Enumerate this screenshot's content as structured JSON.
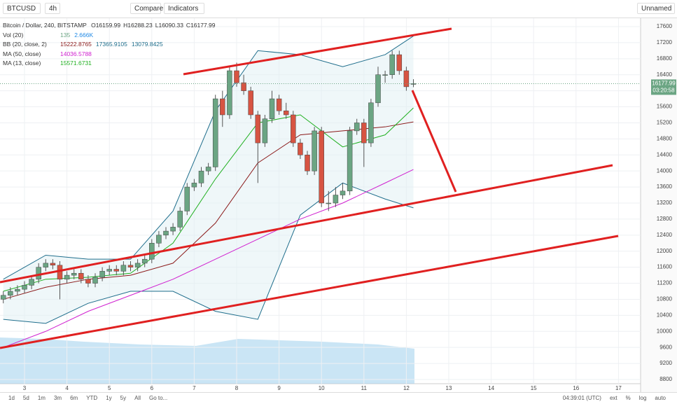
{
  "toolbar": {
    "symbol": "BTCUSD",
    "interval": "4h",
    "compare": "Compare",
    "indicators": "Indicators",
    "layout": "Unnamed"
  },
  "legend": {
    "title": "Bitcoin / Dollar, 240, BITSTAMP",
    "ohlc": [
      {
        "key": "O",
        "value": "16159.99"
      },
      {
        "key": "H",
        "value": "16288.23"
      },
      {
        "key": "L",
        "value": "16090.33"
      },
      {
        "key": "C",
        "value": "16177.99"
      }
    ],
    "studies": [
      {
        "name": "Vol (20)",
        "values": [
          "135",
          "2.666K"
        ],
        "colors": [
          "#6ba583",
          "#1e88e5"
        ]
      },
      {
        "name": "BB (20, close, 2)",
        "values": [
          "15222.8765",
          "17365.9105",
          "13079.8425"
        ],
        "colors": [
          "#8b1a1a",
          "#1f6e8c",
          "#1f6e8c"
        ]
      },
      {
        "name": "MA (50, close)",
        "values": [
          "14036.5788"
        ],
        "colors": [
          "#d020d0"
        ]
      },
      {
        "name": "MA (13, close)",
        "values": [
          "15571.6731"
        ],
        "colors": [
          "#20b020"
        ]
      }
    ]
  },
  "chart_data": {
    "type": "candlestick",
    "ylim": [
      8800,
      17600
    ],
    "yticks": [
      8800,
      9200,
      9600,
      10000,
      10400,
      10800,
      11200,
      11600,
      12000,
      12400,
      12800,
      13200,
      13600,
      14000,
      14400,
      14800,
      15200,
      15600,
      16000,
      16400,
      16800,
      17200,
      17600
    ],
    "xticks": [
      3,
      4,
      5,
      6,
      7,
      8,
      9,
      10,
      11,
      12,
      13,
      14,
      15,
      16,
      17
    ],
    "up_color": "#6ba583",
    "down_color": "#d75442",
    "candles": [
      [
        10800,
        11000,
        10700,
        10900
      ],
      [
        10900,
        11100,
        10800,
        11000
      ],
      [
        11000,
        11150,
        10900,
        11050
      ],
      [
        11050,
        11250,
        10950,
        11150
      ],
      [
        11150,
        11400,
        11050,
        11300
      ],
      [
        11300,
        11700,
        11200,
        11600
      ],
      [
        11600,
        11800,
        11500,
        11700
      ],
      [
        11700,
        11800,
        11550,
        11650
      ],
      [
        11650,
        11750,
        10800,
        11300
      ],
      [
        11300,
        11500,
        11200,
        11400
      ],
      [
        11400,
        11550,
        11300,
        11450
      ],
      [
        11450,
        11550,
        11200,
        11300
      ],
      [
        11300,
        11400,
        11100,
        11200
      ],
      [
        11200,
        11450,
        11100,
        11350
      ],
      [
        11350,
        11600,
        11250,
        11500
      ],
      [
        11500,
        11650,
        11400,
        11550
      ],
      [
        11550,
        11650,
        11400,
        11500
      ],
      [
        11500,
        11750,
        11400,
        11650
      ],
      [
        11650,
        11750,
        11500,
        11600
      ],
      [
        11600,
        11800,
        11500,
        11700
      ],
      [
        11700,
        11900,
        11600,
        11800
      ],
      [
        11800,
        12300,
        11700,
        12200
      ],
      [
        12200,
        12500,
        12100,
        12400
      ],
      [
        12400,
        12600,
        12300,
        12500
      ],
      [
        12500,
        12700,
        12400,
        12600
      ],
      [
        12600,
        13100,
        12500,
        13000
      ],
      [
        13000,
        13700,
        12900,
        13600
      ],
      [
        13600,
        13800,
        13500,
        13700
      ],
      [
        13700,
        14100,
        13600,
        14000
      ],
      [
        14000,
        14200,
        13900,
        14100
      ],
      [
        14100,
        15900,
        14000,
        15800
      ],
      [
        15800,
        16000,
        15100,
        15400
      ],
      [
        15400,
        16600,
        15300,
        16500
      ],
      [
        16500,
        16700,
        16100,
        16200
      ],
      [
        16200,
        16400,
        15900,
        16000
      ],
      [
        16000,
        16100,
        15300,
        15400
      ],
      [
        15400,
        15500,
        13700,
        14700
      ],
      [
        14700,
        15400,
        14600,
        15300
      ],
      [
        15300,
        16000,
        15200,
        15800
      ],
      [
        15800,
        15900,
        15400,
        15500
      ],
      [
        15500,
        15700,
        15300,
        15400
      ],
      [
        15400,
        15500,
        14600,
        14700
      ],
      [
        14700,
        14800,
        14300,
        14400
      ],
      [
        14400,
        14500,
        13900,
        14000
      ],
      [
        14000,
        15100,
        13900,
        15000
      ],
      [
        15000,
        15100,
        13100,
        13200
      ],
      [
        13200,
        13500,
        13000,
        13200
      ],
      [
        13200,
        13600,
        13100,
        13400
      ],
      [
        13400,
        13700,
        13300,
        13500
      ],
      [
        13500,
        15100,
        13400,
        15000
      ],
      [
        15000,
        15300,
        14900,
        15200
      ],
      [
        15200,
        15300,
        14100,
        14700
      ],
      [
        14700,
        15800,
        14600,
        15700
      ],
      [
        15700,
        16600,
        15600,
        16400
      ],
      [
        16400,
        16500,
        16200,
        16400
      ],
      [
        16400,
        17000,
        16300,
        16900
      ],
      [
        16900,
        17000,
        16400,
        16500
      ],
      [
        16500,
        16600,
        16000,
        16100
      ],
      [
        16159.99,
        16288.23,
        16090.33,
        16177.99
      ]
    ],
    "line_index": [
      0,
      6,
      12,
      18,
      24,
      30,
      36,
      42,
      48,
      54,
      58
    ],
    "lines": [
      {
        "name": "BB upper",
        "color": "#1f6e8c",
        "values": [
          11300,
          11900,
          11800,
          11800,
          13000,
          15500,
          17000,
          16900,
          16600,
          16900,
          17365.91
        ]
      },
      {
        "name": "BB lower",
        "color": "#1f6e8c",
        "values": [
          10300,
          10200,
          10700,
          11000,
          11000,
          10500,
          10300,
          12900,
          13700,
          13300,
          13079.84
        ]
      },
      {
        "name": "BB basis",
        "color": "#8b1a1a",
        "values": [
          10800,
          11100,
          11300,
          11400,
          11700,
          12700,
          14200,
          14900,
          15000,
          15100,
          15222.88
        ]
      },
      {
        "name": "MA 50",
        "color": "#d020d0",
        "values": [
          9600,
          10000,
          10500,
          10900,
          11300,
          11800,
          12300,
          12800,
          13200,
          13700,
          14036.58
        ]
      },
      {
        "name": "MA 13",
        "color": "#20b020",
        "values": [
          11000,
          11300,
          11350,
          11450,
          12200,
          13800,
          15200,
          15400,
          14600,
          14900,
          15571.67
        ]
      }
    ],
    "last_price": {
      "value": 16177.99,
      "label": "16177.99"
    },
    "countdown": "03:20:58"
  },
  "bottom_bar": {
    "ranges": [
      "1d",
      "5d",
      "1m",
      "3m",
      "6m",
      "YTD",
      "1y",
      "5y",
      "All",
      "Go to..."
    ],
    "clock": "04:39:01 (UTC)",
    "options": [
      "ext",
      "%",
      "log",
      "auto"
    ]
  }
}
